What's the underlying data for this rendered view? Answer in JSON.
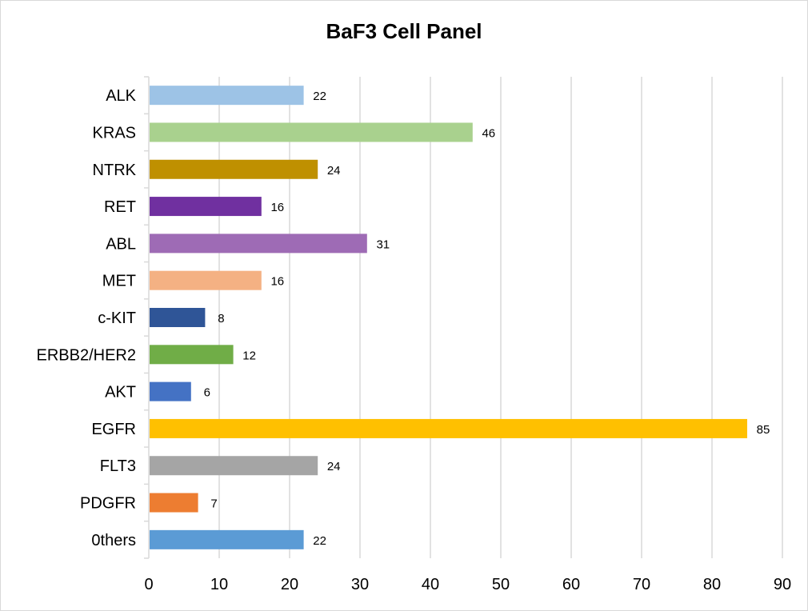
{
  "chart_data": {
    "type": "bar",
    "orientation": "horizontal",
    "title": "BaF3 Cell Panel",
    "categories": [
      "ALK",
      "KRAS",
      "NTRK",
      "RET",
      "ABL",
      "MET",
      "c-KIT",
      "ERBB2/HER2",
      "AKT",
      "EGFR",
      "FLT3",
      "PDGFR",
      "0thers"
    ],
    "values": [
      22,
      46,
      24,
      16,
      31,
      16,
      8,
      12,
      6,
      85,
      24,
      7,
      22
    ],
    "colors": [
      "#9dc3e6",
      "#a9d18e",
      "#bf9000",
      "#7030a0",
      "#9e6bb5",
      "#f4b183",
      "#2f5597",
      "#70ad47",
      "#4472c4",
      "#ffc000",
      "#a5a5a5",
      "#ed7d31",
      "#5b9bd5"
    ],
    "xlim": [
      0,
      90
    ],
    "xticks": [
      0,
      10,
      20,
      30,
      40,
      50,
      60,
      70,
      80,
      90
    ],
    "grid": true,
    "data_labels": true,
    "xlabel": "",
    "ylabel": ""
  }
}
